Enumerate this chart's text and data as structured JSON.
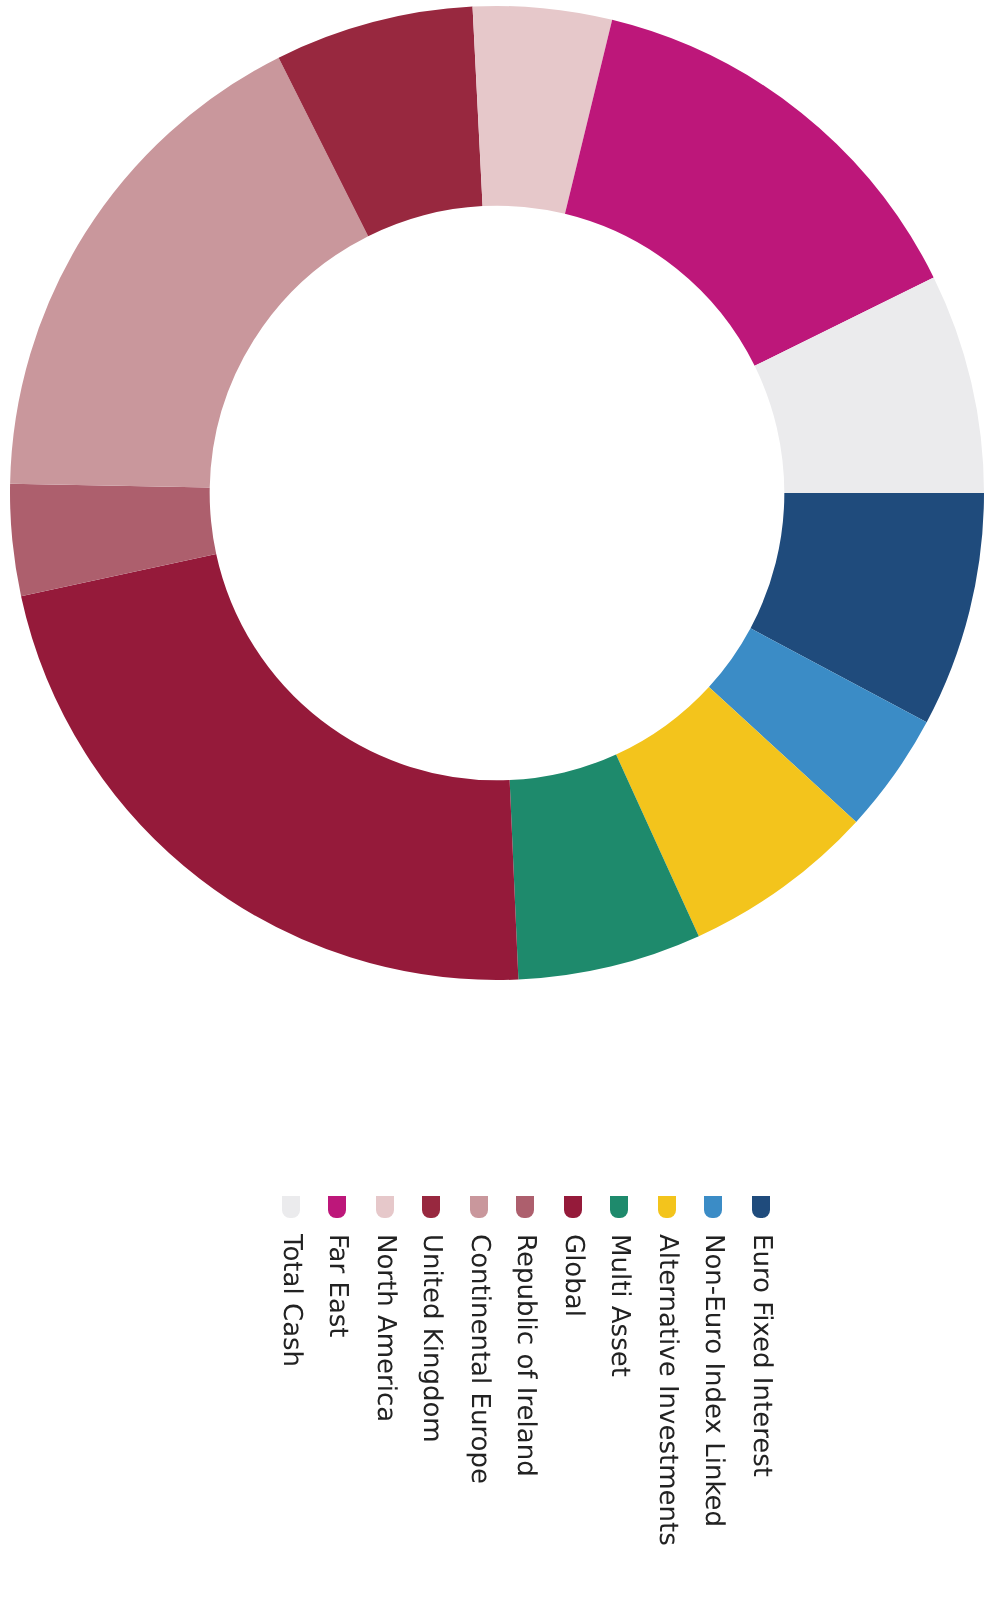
{
  "chart_data": {
    "type": "donut",
    "categories": [
      "Euro Fixed Interest",
      "Non-Euro Index Linked",
      "Alternative Investments",
      "Multi Asset",
      "Global",
      "Republic of Ireland",
      "Continental Europe",
      "United Kingdom",
      "North America",
      "Far East",
      "Total Cash"
    ],
    "values": [
      7.8,
      4.0,
      6.4,
      6.1,
      22.3,
      3.7,
      17.3,
      6.6,
      4.6,
      13.9,
      7.3
    ],
    "colors": [
      "#1f4b7c",
      "#3b8cc6",
      "#f3c41c",
      "#1e8a6c",
      "#951a3a",
      "#ad5f6d",
      "#c9979c",
      "#98283f",
      "#e6c8ca",
      "#bd177a",
      "#ebebed"
    ],
    "legend": "bottom"
  }
}
